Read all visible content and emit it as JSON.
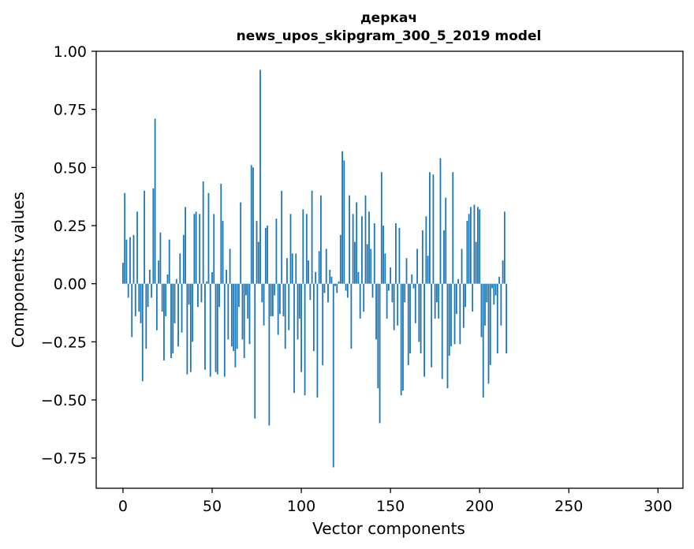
{
  "chart_data": {
    "type": "bar",
    "title": "деркач",
    "subtitle": "news_upos_skipgram_300_5_2019 model",
    "xlabel": "Vector components",
    "ylabel": "Components values",
    "xlim": [
      -15,
      314
    ],
    "ylim": [
      -0.88,
      1.0
    ],
    "xticks": [
      0,
      50,
      100,
      150,
      200,
      250,
      300
    ],
    "xtick_labels": [
      "0",
      "50",
      "100",
      "150",
      "200",
      "250",
      "300"
    ],
    "yticks": [
      1.0,
      0.75,
      0.5,
      0.25,
      0.0,
      -0.25,
      -0.5,
      -0.75
    ],
    "ytick_labels": [
      "1.00",
      "0.75",
      "0.50",
      "0.25",
      "0.00",
      "−0.25",
      "−0.50",
      "−0.75"
    ],
    "color": "#1f77b4",
    "values": [
      0.09,
      0.39,
      0.19,
      -0.06,
      0.2,
      -0.23,
      0.21,
      -0.14,
      0.31,
      -0.12,
      -0.17,
      -0.42,
      0.4,
      -0.28,
      -0.1,
      0.06,
      -0.06,
      0.41,
      0.71,
      -0.2,
      0.1,
      0.22,
      -0.12,
      -0.33,
      -0.14,
      0.04,
      0.19,
      -0.32,
      -0.3,
      -0.17,
      0.02,
      -0.27,
      0.13,
      -0.21,
      0.21,
      0.33,
      -0.39,
      -0.09,
      -0.38,
      -0.25,
      0.3,
      0.31,
      -0.1,
      0.3,
      -0.08,
      0.44,
      -0.37,
      0.01,
      0.39,
      -0.4,
      0.05,
      0.3,
      -0.38,
      -0.39,
      -0.1,
      0.43,
      0.27,
      -0.4,
      0.06,
      -0.24,
      0.15,
      -0.27,
      -0.29,
      -0.36,
      -0.28,
      -0.1,
      0.35,
      -0.24,
      -0.32,
      -0.05,
      -0.15,
      -0.26,
      0.51,
      0.5,
      -0.58,
      0.27,
      0.18,
      0.92,
      -0.08,
      -0.18,
      0.24,
      0.25,
      -0.61,
      -0.14,
      -0.14,
      -0.05,
      0.28,
      -0.22,
      -0.13,
      0.4,
      -0.14,
      -0.28,
      0.11,
      -0.2,
      0.3,
      0.13,
      -0.47,
      0.13,
      -0.24,
      -0.15,
      -0.38,
      0.32,
      -0.48,
      0.3,
      0.1,
      -0.07,
      0.4,
      -0.29,
      0.05,
      -0.49,
      0.14,
      0.38,
      -0.35,
      -0.04,
      0.15,
      -0.08,
      0.06,
      0.03,
      -0.79,
      -0.01,
      -0.04,
      0.01,
      0.21,
      0.57,
      0.53,
      -0.03,
      -0.06,
      0.38,
      -0.28,
      0.3,
      0.18,
      0.35,
      0.05,
      -0.15,
      0.29,
      -0.12,
      0.38,
      0.17,
      0.31,
      0.15,
      -0.06,
      0.26,
      -0.24,
      -0.45,
      -0.6,
      0.48,
      0.25,
      0.13,
      -0.15,
      -0.03,
      0.07,
      -0.08,
      -0.2,
      0.26,
      -0.18,
      0.24,
      -0.48,
      -0.46,
      -0.08,
      0.11,
      -0.35,
      -0.3,
      0.04,
      -0.02,
      -0.17,
      0.15,
      -0.25,
      -0.3,
      0.23,
      -0.4,
      0.29,
      0.12,
      0.48,
      -0.36,
      0.47,
      -0.15,
      -0.08,
      -0.15,
      0.54,
      -0.41,
      0.23,
      0.37,
      -0.45,
      -0.31,
      -0.27,
      0.48,
      -0.26,
      -0.13,
      0.02,
      -0.26,
      0.15,
      -0.19,
      -0.1,
      0.27,
      0.3,
      0.33,
      -0.12,
      0.34,
      0.18,
      0.33,
      0.32,
      -0.23,
      -0.49,
      -0.18,
      -0.08,
      -0.43,
      -0.35,
      -0.02,
      -0.09,
      -0.05,
      -0.3,
      0.03,
      -0.18,
      0.1,
      0.31,
      -0.3
    ]
  }
}
